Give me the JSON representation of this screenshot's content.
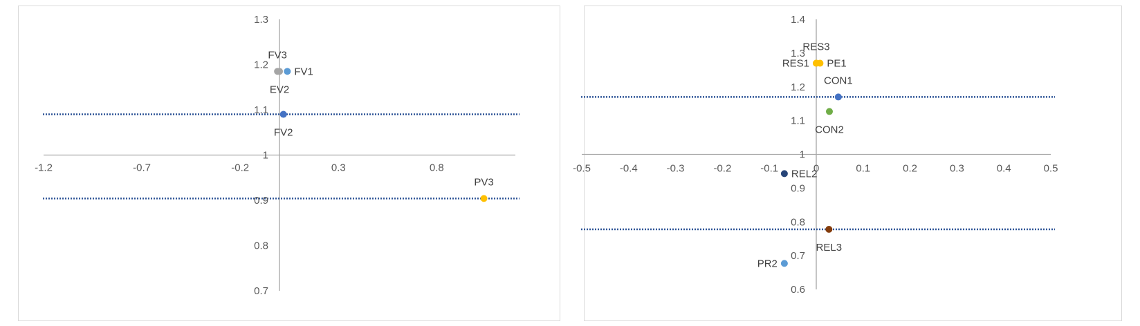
{
  "chart_data": [
    {
      "type": "scatter",
      "title": "",
      "xlabel": "",
      "ylabel": "",
      "xlim": [
        -1.2,
        1.2
      ],
      "ylim": [
        0.7,
        1.3
      ],
      "x_ticks": [
        "-1.2",
        "-0.7",
        "-0.2",
        "0.3",
        "0.8"
      ],
      "y_ticks": [
        "1.3",
        "1.2",
        "1.1",
        "1",
        "0.9",
        "0.8",
        "0.7"
      ],
      "x_tick_values": [
        -1.2,
        -0.7,
        -0.2,
        0.3,
        0.8
      ],
      "y_tick_values": [
        1.3,
        1.2,
        1.1,
        1.0,
        0.9,
        0.8,
        0.7
      ],
      "grid": false,
      "reference_lines": [
        1.09,
        0.904
      ],
      "points": [
        {
          "label": "FV3",
          "x": -0.01,
          "y": 1.185,
          "color": "#a5a5a5",
          "label_pos": "above"
        },
        {
          "label": "FV1",
          "x": 0.04,
          "y": 1.185,
          "color": "#5b9bd5",
          "label_pos": "right"
        },
        {
          "label": "EV2",
          "x": 0.0,
          "y": 1.185,
          "color": "#a5a5a5",
          "label_pos": "below"
        },
        {
          "label": "FV2",
          "x": 0.02,
          "y": 1.09,
          "color": "#4472c4",
          "label_pos": "below"
        },
        {
          "label": "PV3",
          "x": 1.04,
          "y": 0.904,
          "color": "#ffc000",
          "label_pos": "above"
        }
      ]
    },
    {
      "type": "scatter",
      "title": "",
      "xlabel": "",
      "ylabel": "",
      "xlim": [
        -0.5,
        0.5
      ],
      "ylim": [
        0.6,
        1.4
      ],
      "x_ticks": [
        "-0.5",
        "-0.4",
        "-0.3",
        "-0.2",
        "-0.1",
        "0",
        "0.1",
        "0.2",
        "0.3",
        "0.4",
        "0.5"
      ],
      "y_ticks": [
        "1.4",
        "1.3",
        "1.2",
        "1.1",
        "1",
        "0.9",
        "0.8",
        "0.7",
        "0.6"
      ],
      "x_tick_values": [
        -0.5,
        -0.4,
        -0.3,
        -0.2,
        -0.1,
        0,
        0.1,
        0.2,
        0.3,
        0.4,
        0.5
      ],
      "y_tick_values": [
        1.4,
        1.3,
        1.2,
        1.1,
        1.0,
        0.9,
        0.8,
        0.7,
        0.6
      ],
      "grid": false,
      "reference_lines": [
        1.17,
        0.778
      ],
      "points": [
        {
          "label": "RES3",
          "x": 0.0,
          "y": 1.27,
          "color": "#ffc000",
          "label_pos": "above"
        },
        {
          "label": "RES1",
          "x": 0.0,
          "y": 1.27,
          "color": "#ffc000",
          "label_pos": "left"
        },
        {
          "label": "PE1",
          "x": 0.008,
          "y": 1.27,
          "color": "#ffc000",
          "label_pos": "right"
        },
        {
          "label": "CON1",
          "x": 0.047,
          "y": 1.17,
          "color": "#4472c4",
          "label_pos": "above"
        },
        {
          "label": "CON2",
          "x": 0.028,
          "y": 1.127,
          "color": "#70ad47",
          "label_pos": "below"
        },
        {
          "label": "REL2",
          "x": -0.068,
          "y": 0.943,
          "color": "#264478",
          "label_pos": "right"
        },
        {
          "label": "REL3",
          "x": 0.027,
          "y": 0.778,
          "color": "#843c0c",
          "label_pos": "below"
        },
        {
          "label": "PR2",
          "x": -0.068,
          "y": 0.677,
          "color": "#5b9bd5",
          "label_pos": "left"
        }
      ]
    }
  ]
}
